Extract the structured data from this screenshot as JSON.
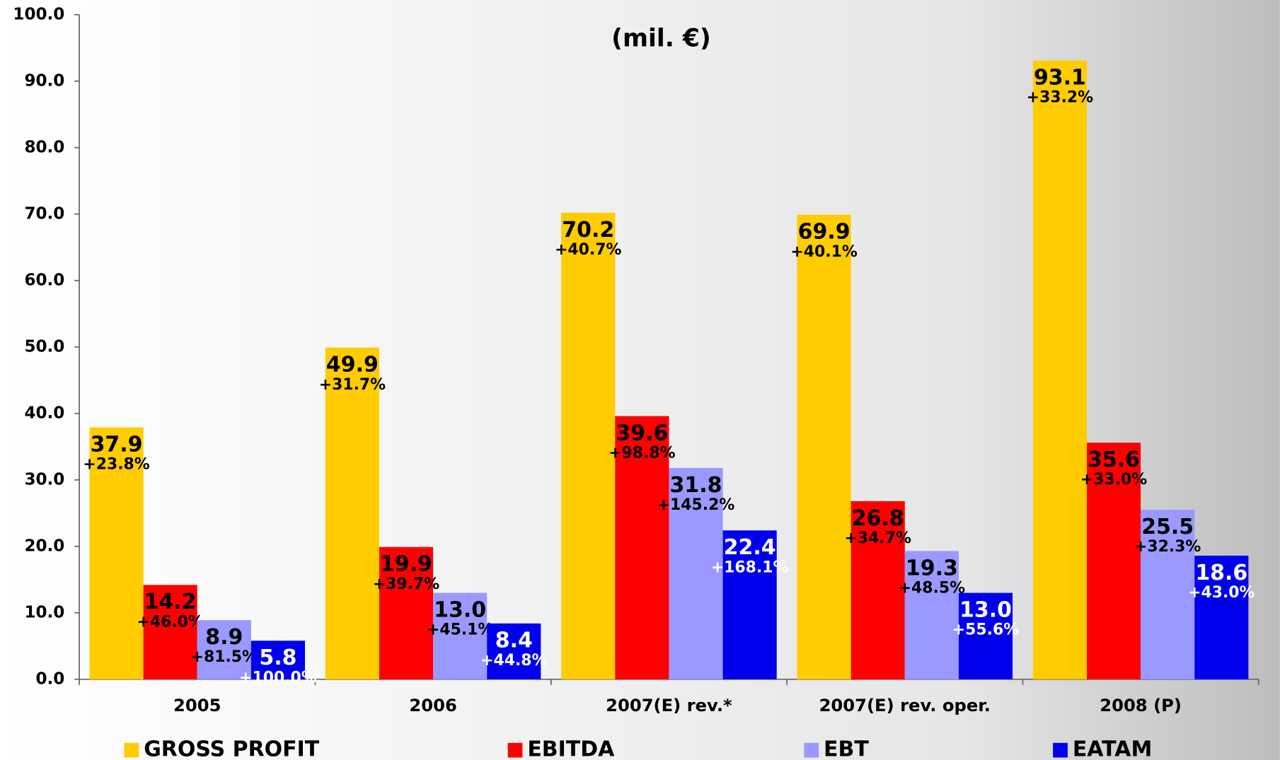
{
  "chart_data": {
    "type": "bar",
    "title": "(mil. €)",
    "categories": [
      "2005",
      "2006",
      "2007(E) rev.*",
      "2007(E) rev. oper.",
      "2008 (P)"
    ],
    "ylim": [
      0,
      100
    ],
    "yticks": [
      {
        "value": 0,
        "label": "0.0"
      },
      {
        "value": 10,
        "label": "10.0"
      },
      {
        "value": 20,
        "label": "20.0"
      },
      {
        "value": 30,
        "label": "30.0"
      },
      {
        "value": 40,
        "label": "40.0"
      },
      {
        "value": 50,
        "label": "50.0"
      },
      {
        "value": 60,
        "label": "60.0"
      },
      {
        "value": 70,
        "label": "70.0"
      },
      {
        "value": 80,
        "label": "80.0"
      },
      {
        "value": 90,
        "label": "90.0"
      },
      {
        "value": 100,
        "label": "100.0"
      }
    ],
    "series": [
      {
        "name": "GROSS PROFIT",
        "color": "#ffcc00",
        "label_color": "#000000",
        "change_color": "#000000",
        "values": [
          37.9,
          49.9,
          70.2,
          69.9,
          93.1
        ],
        "changes": [
          "+23.8%",
          "+31.7%",
          "+40.7%",
          "+40.1%",
          "+33.2%"
        ]
      },
      {
        "name": "EBITDA",
        "color": "#ff0000",
        "label_color": "#000000",
        "change_color": "#000000",
        "values": [
          14.2,
          19.9,
          39.6,
          26.8,
          35.6
        ],
        "changes": [
          "+46.0%",
          "+39.7%",
          "+98.8%",
          "+34.7%",
          "+33.0%"
        ]
      },
      {
        "name": "EBT",
        "color": "#9999ff",
        "label_color": "#000000",
        "change_color": "#000000",
        "values": [
          8.9,
          13.0,
          31.8,
          19.3,
          25.5
        ],
        "value_labels": [
          "8.9",
          "13.0",
          "31.8",
          "19.3",
          "25.5"
        ],
        "changes": [
          "+81.5%",
          "+45.1%",
          "+145.2%",
          "+48.5%",
          "+32.3%"
        ]
      },
      {
        "name": "EATAM",
        "color": "#0000ee",
        "label_color": "#ffffff",
        "change_color": "#ffffff",
        "values": [
          5.8,
          8.4,
          22.4,
          13.0,
          18.6
        ],
        "value_labels": [
          "5.8",
          "8.4",
          "22.4",
          "13.0",
          "18.6"
        ],
        "changes": [
          "+100.0%",
          "+44.8%",
          "+168.1%",
          "+55.6%",
          "+43.0%"
        ]
      }
    ]
  }
}
